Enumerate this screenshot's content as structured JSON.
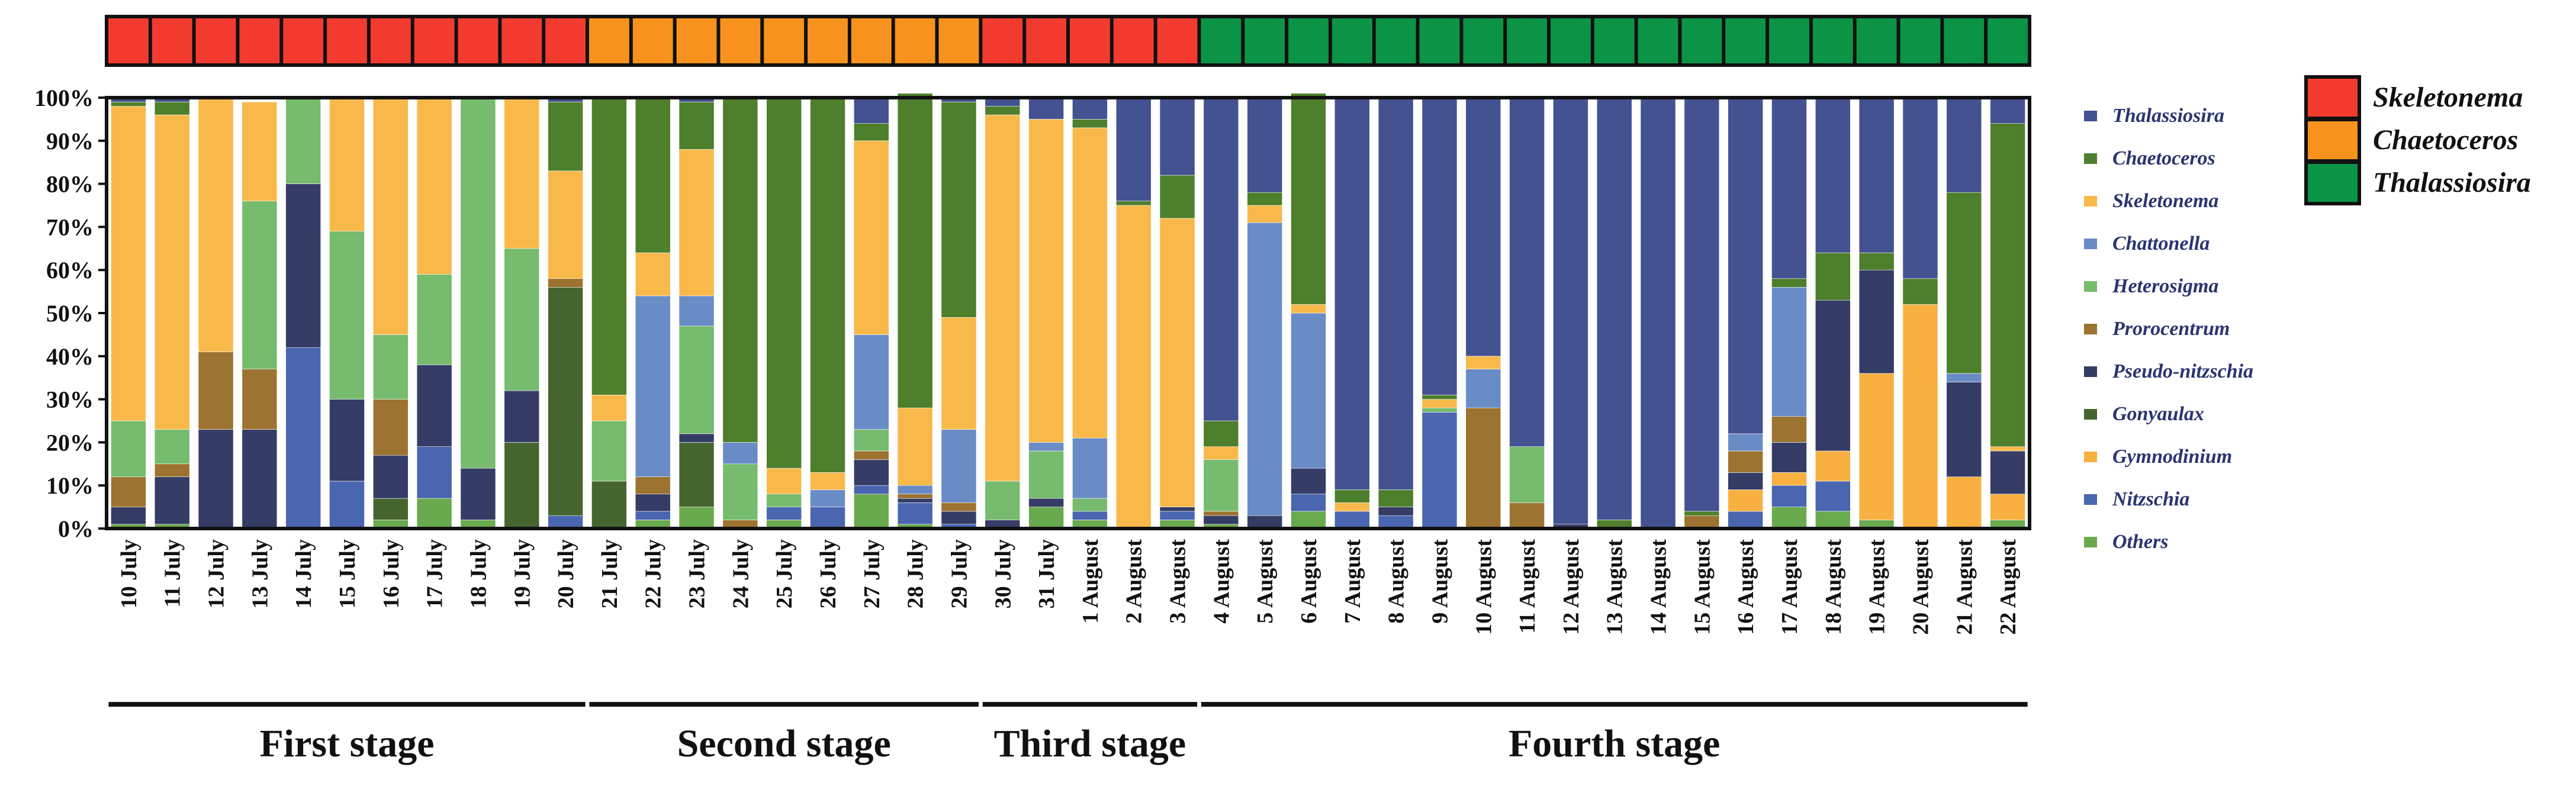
{
  "chart_data": {
    "type": "stacked-bar",
    "orientation": "vertical",
    "ylim": [
      0,
      100
    ],
    "y_ticks": [
      "0%",
      "10%",
      "20%",
      "30%",
      "40%",
      "50%",
      "60%",
      "70%",
      "80%",
      "90%",
      "100%"
    ],
    "categories": [
      "10 July",
      "11 July",
      "12 July",
      "13 July",
      "14 July",
      "15 July",
      "16 July",
      "17 July",
      "18 July",
      "19 July",
      "20 July",
      "21 July",
      "22 July",
      "23 July",
      "24 July",
      "25 July",
      "26 July",
      "27 July",
      "28 July",
      "29 July",
      "30 July",
      "31 July",
      "1 August",
      "2 August",
      "3 August",
      "4 August",
      "5 August",
      "6 August",
      "7 August",
      "8 August",
      "9 August",
      "10 August",
      "11 August",
      "12 August",
      "13 August",
      "14 August",
      "15 August",
      "16 August",
      "17 August",
      "18 August",
      "19 August",
      "20 August",
      "21 August",
      "22 August"
    ],
    "series": [
      {
        "name": "Others",
        "color": "#6aaa4e",
        "values": [
          1,
          1,
          0,
          0,
          0,
          0,
          2,
          7,
          2,
          0,
          0,
          0,
          2,
          5,
          0,
          2,
          0,
          8,
          1,
          0,
          0,
          5,
          2,
          0,
          2,
          1,
          0,
          4,
          0,
          0,
          0,
          0,
          0,
          0,
          0,
          0,
          0,
          0,
          5,
          4,
          2,
          0,
          0,
          2
        ]
      },
      {
        "name": "Nitzschia",
        "color": "#4a66b0",
        "values": [
          0,
          0,
          0,
          0,
          42,
          11,
          0,
          12,
          0,
          0,
          3,
          0,
          2,
          0,
          0,
          3,
          5,
          2,
          5,
          1,
          0,
          0,
          2,
          0,
          2,
          0,
          0,
          4,
          4,
          3,
          27,
          0,
          0,
          0,
          0,
          0,
          0,
          4,
          5,
          7,
          0,
          0,
          0,
          0
        ]
      },
      {
        "name": "Gymnodinium",
        "color": "#f8b041",
        "values": [
          0,
          0,
          0,
          0,
          0,
          0,
          0,
          0,
          0,
          0,
          0,
          0,
          0,
          0,
          0,
          0,
          0,
          0,
          0,
          0,
          0,
          0,
          0,
          0,
          0,
          0,
          0,
          0,
          0,
          0,
          0,
          0,
          0,
          0,
          0,
          0,
          0,
          5,
          3,
          7,
          34,
          52,
          12,
          6
        ]
      },
      {
        "name": "Gonyaulax",
        "color": "#46652e",
        "values": [
          0,
          0,
          0,
          0,
          0,
          0,
          5,
          0,
          0,
          20,
          53,
          11,
          0,
          15,
          0,
          0,
          0,
          0,
          0,
          0,
          0,
          0,
          0,
          0,
          0,
          0,
          0,
          0,
          0,
          0,
          0,
          0,
          0,
          0,
          0,
          0,
          0,
          0,
          0,
          0,
          0,
          0,
          0,
          0
        ]
      },
      {
        "name": "Pseudo-nitzschia",
        "color": "#353c66",
        "values": [
          4,
          11,
          23,
          23,
          38,
          19,
          10,
          19,
          12,
          12,
          0,
          0,
          4,
          2,
          0,
          0,
          0,
          6,
          1,
          3,
          2,
          2,
          0,
          0,
          1,
          2,
          3,
          6,
          0,
          2,
          0,
          0,
          0,
          1,
          0,
          0,
          0,
          4,
          7,
          35,
          24,
          0,
          22,
          10
        ]
      },
      {
        "name": "Prorocentrum",
        "color": "#9c7330",
        "values": [
          7,
          3,
          18,
          14,
          0,
          0,
          13,
          0,
          0,
          0,
          2,
          0,
          4,
          0,
          2,
          0,
          0,
          2,
          1,
          2,
          0,
          0,
          0,
          0,
          0,
          1,
          0,
          0,
          0,
          0,
          0,
          28,
          6,
          0,
          0,
          0,
          3,
          5,
          6,
          0,
          0,
          0,
          0,
          0
        ]
      },
      {
        "name": "Heterosigma",
        "color": "#76bb6e",
        "values": [
          13,
          8,
          0,
          39,
          20,
          39,
          15,
          21,
          86,
          33,
          0,
          14,
          0,
          25,
          13,
          3,
          0,
          5,
          0,
          0,
          9,
          11,
          3,
          0,
          0,
          12,
          0,
          0,
          0,
          0,
          1,
          0,
          13,
          0,
          0,
          0,
          0,
          0,
          0,
          0,
          0,
          0,
          0,
          0
        ]
      },
      {
        "name": "Chattonella",
        "color": "#6a8cc6",
        "values": [
          0,
          0,
          0,
          0,
          0,
          0,
          0,
          0,
          0,
          0,
          0,
          0,
          42,
          7,
          5,
          0,
          4,
          22,
          2,
          17,
          0,
          2,
          14,
          0,
          0,
          0,
          68,
          36,
          0,
          0,
          0,
          9,
          0,
          0,
          0,
          0,
          0,
          4,
          30,
          0,
          0,
          0,
          2,
          0
        ]
      },
      {
        "name": "Skeletonema",
        "color": "#f8b94a",
        "values": [
          73,
          73,
          59,
          23,
          0,
          31,
          55,
          41,
          0,
          35,
          25,
          6,
          10,
          34,
          0,
          6,
          4,
          45,
          18,
          26,
          85,
          75,
          72,
          75,
          67,
          3,
          4,
          2,
          2,
          0,
          2,
          3,
          0,
          0,
          0,
          0,
          0,
          0,
          0,
          0,
          0,
          0,
          0,
          1
        ]
      },
      {
        "name": "Chaetoceros",
        "color": "#4e7f2c",
        "values": [
          1,
          3,
          0,
          0,
          0,
          0,
          0,
          0,
          0,
          0,
          16,
          69,
          36,
          11,
          80,
          86,
          87,
          4,
          73,
          50,
          2,
          0,
          2,
          1,
          10,
          6,
          3,
          49,
          3,
          4,
          1,
          0,
          0,
          0,
          2,
          0,
          1,
          0,
          2,
          11,
          4,
          6,
          42,
          75
        ]
      },
      {
        "name": "Thalassiosira",
        "color": "#445292",
        "values": [
          1,
          1,
          0,
          0,
          0,
          0,
          0,
          0,
          0,
          0,
          1,
          0,
          0,
          1,
          0,
          0,
          0,
          6,
          0,
          1,
          2,
          5,
          5,
          24,
          18,
          75,
          22,
          0,
          91,
          91,
          69,
          60,
          81,
          99,
          98,
          100,
          96,
          78,
          42,
          36,
          36,
          42,
          22,
          6
        ]
      }
    ],
    "legend": {
      "placement": "right",
      "entries": [
        "Thalassiosira",
        "Chaetoceros",
        "Skeletonema",
        "Chattonella",
        "Heterosigma",
        "Prorocentrum",
        "Pseudo-nitzschia",
        "Gonyaulax",
        "Gymnodinium",
        "Nitzschia",
        "Others"
      ]
    },
    "dominance": {
      "legend": [
        {
          "name": "Skeletonema",
          "color": "#f23b2e"
        },
        {
          "name": "Chaetoceros",
          "color": "#f7921e"
        },
        {
          "name": "Thalassiosira",
          "color": "#0c9446"
        }
      ],
      "sequence": [
        "Skeletonema",
        "Skeletonema",
        "Skeletonema",
        "Skeletonema",
        "Skeletonema",
        "Skeletonema",
        "Skeletonema",
        "Skeletonema",
        "Skeletonema",
        "Skeletonema",
        "Skeletonema",
        "Chaetoceros",
        "Chaetoceros",
        "Chaetoceros",
        "Chaetoceros",
        "Chaetoceros",
        "Chaetoceros",
        "Chaetoceros",
        "Chaetoceros",
        "Chaetoceros",
        "Skeletonema",
        "Skeletonema",
        "Skeletonema",
        "Skeletonema",
        "Skeletonema",
        "Thalassiosira",
        "Thalassiosira",
        "Thalassiosira",
        "Thalassiosira",
        "Thalassiosira",
        "Thalassiosira",
        "Thalassiosira",
        "Thalassiosira",
        "Thalassiosira",
        "Thalassiosira",
        "Thalassiosira",
        "Thalassiosira",
        "Thalassiosira",
        "Thalassiosira",
        "Thalassiosira",
        "Thalassiosira",
        "Thalassiosira",
        "Thalassiosira",
        "Thalassiosira"
      ]
    },
    "stages": [
      {
        "label": "First stage",
        "from": "10 July",
        "to": "20 July"
      },
      {
        "label": "Second stage",
        "from": "21 July",
        "to": "29 July"
      },
      {
        "label": "Third stage",
        "from": "30 July",
        "to": "3 August"
      },
      {
        "label": "Fourth stage",
        "from": "4 August",
        "to": "22 August"
      }
    ]
  }
}
